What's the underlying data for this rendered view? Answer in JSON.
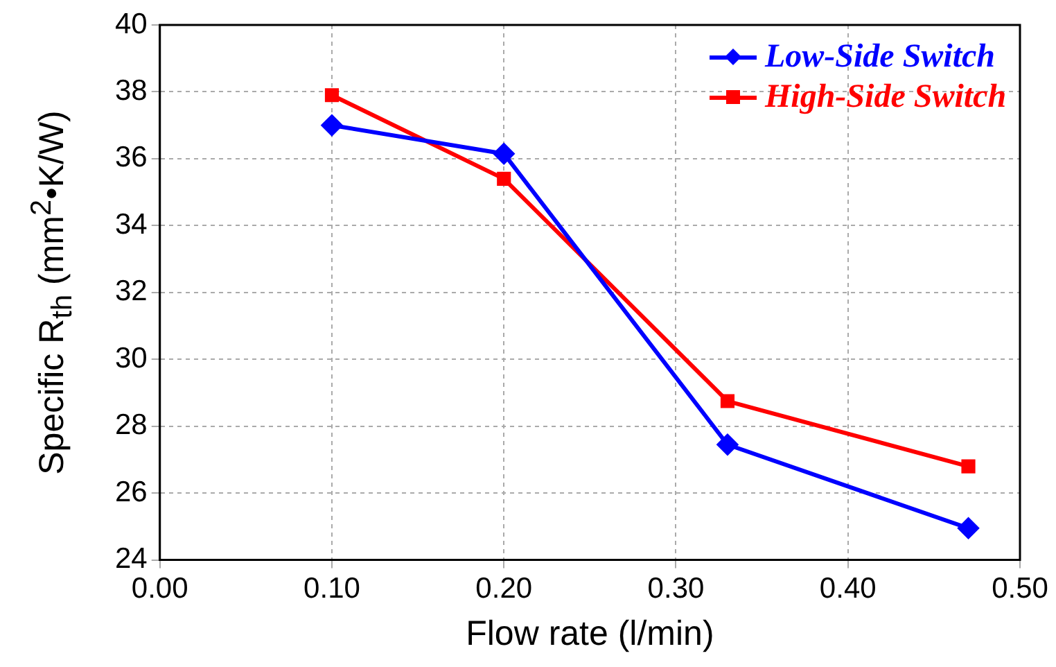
{
  "chart_data": {
    "type": "line",
    "xlabel": "Flow rate (l/min)",
    "ylabel": "Specific R$_{th}$ (mm$^{2}$•K/W)",
    "x": [
      0.1,
      0.2,
      0.33,
      0.47
    ],
    "series": [
      {
        "name": "Low-Side Switch",
        "color": "#0000ff",
        "marker": "diamond",
        "values": [
          37.0,
          36.15,
          27.45,
          24.95
        ]
      },
      {
        "name": "High-Side Switch",
        "color": "#ff0000",
        "marker": "square",
        "values": [
          37.9,
          35.4,
          28.75,
          26.8
        ]
      }
    ],
    "xlim": [
      0,
      0.5
    ],
    "xticks": [
      {
        "value": 0,
        "label": "0.00"
      },
      {
        "value": 0.1,
        "label": "0.10"
      },
      {
        "value": 0.2,
        "label": "0.20"
      },
      {
        "value": 0.3,
        "label": "0.30"
      },
      {
        "value": 0.4,
        "label": "0.40"
      },
      {
        "value": 0.5,
        "label": "0.50"
      }
    ],
    "ylim": [
      24,
      40
    ],
    "yticks": [
      24,
      26,
      28,
      30,
      32,
      34,
      36,
      38,
      40
    ],
    "grid": true,
    "legend": "top right",
    "line_style": "solid"
  }
}
